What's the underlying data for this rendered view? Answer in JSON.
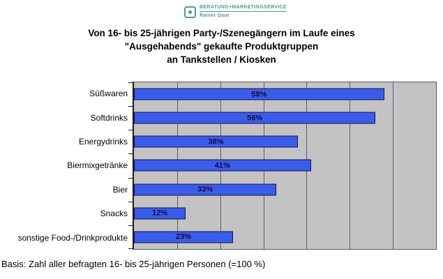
{
  "logo": {
    "line1": "BERATUNG+MARKETINGSERVICE",
    "line2": "Rainer Daut",
    "color": "#4e9b8c"
  },
  "title": {
    "line1": "Von 16- bis 25-jährigen Party-/Szenegängern im Laufe eines",
    "line2": "\"Ausgehabends\" gekaufte Produktgruppen",
    "line3": "an Tankstellen / Kiosken"
  },
  "chart_data": {
    "type": "bar",
    "orientation": "horizontal",
    "categories": [
      "Süßwaren",
      "Softdrinks",
      "Energydrinks",
      "Biermixgetränke",
      "Bier",
      "Snacks",
      "sonstige Food-/Drinkprodukte"
    ],
    "values": [
      58,
      56,
      38,
      41,
      33,
      12,
      23
    ],
    "labels": [
      "58%",
      "56%",
      "38%",
      "41%",
      "33%",
      "12%",
      "23%"
    ],
    "xlim": [
      0,
      70
    ],
    "gridline_interval": 10,
    "grid": true,
    "legend": "none",
    "tick_labels_visible": false,
    "bar_color": "#3b5ce9",
    "bar_border_color": "#14144e",
    "value_label_color": "#0c0c3a",
    "plot_bg": "#c3c3c5",
    "gridline_color": "#5f5f5f"
  },
  "footer": {
    "text": "Basis: Zahl aller befragten 16- bis 25-jährigen Personen (=100 %)"
  }
}
